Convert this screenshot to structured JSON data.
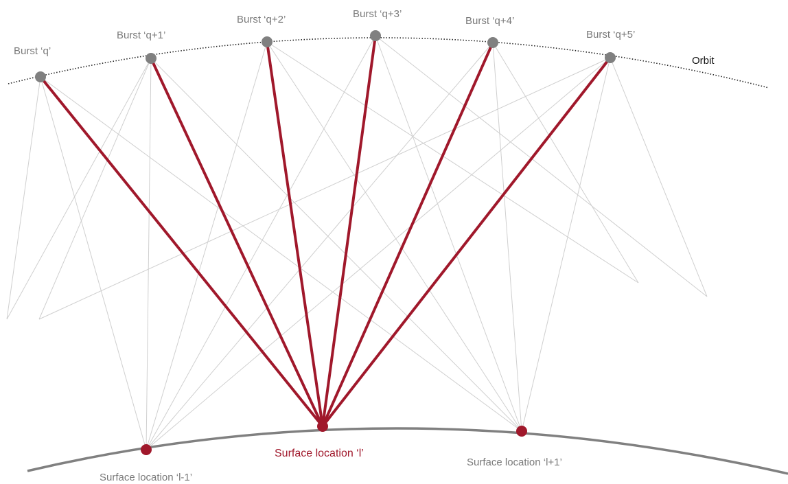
{
  "orbit": {
    "label": "Orbit"
  },
  "bursts": [
    {
      "label": "Burst ‘q’"
    },
    {
      "label": "Burst ‘q+1’"
    },
    {
      "label": "Burst ‘q+2’"
    },
    {
      "label": "Burst ‘q+3’"
    },
    {
      "label": "Burst ‘q+4’"
    },
    {
      "label": "Burst ‘q+5’"
    }
  ],
  "surface_locations": [
    {
      "label": "Surface location ‘l-1’"
    },
    {
      "label": "Surface location ‘l’"
    },
    {
      "label": "Surface location ‘l+1’"
    }
  ],
  "colors": {
    "highlight": "#a0182b",
    "burst_point": "#808080",
    "faint_line": "#cfcfcf",
    "surface_curve": "#808080"
  }
}
